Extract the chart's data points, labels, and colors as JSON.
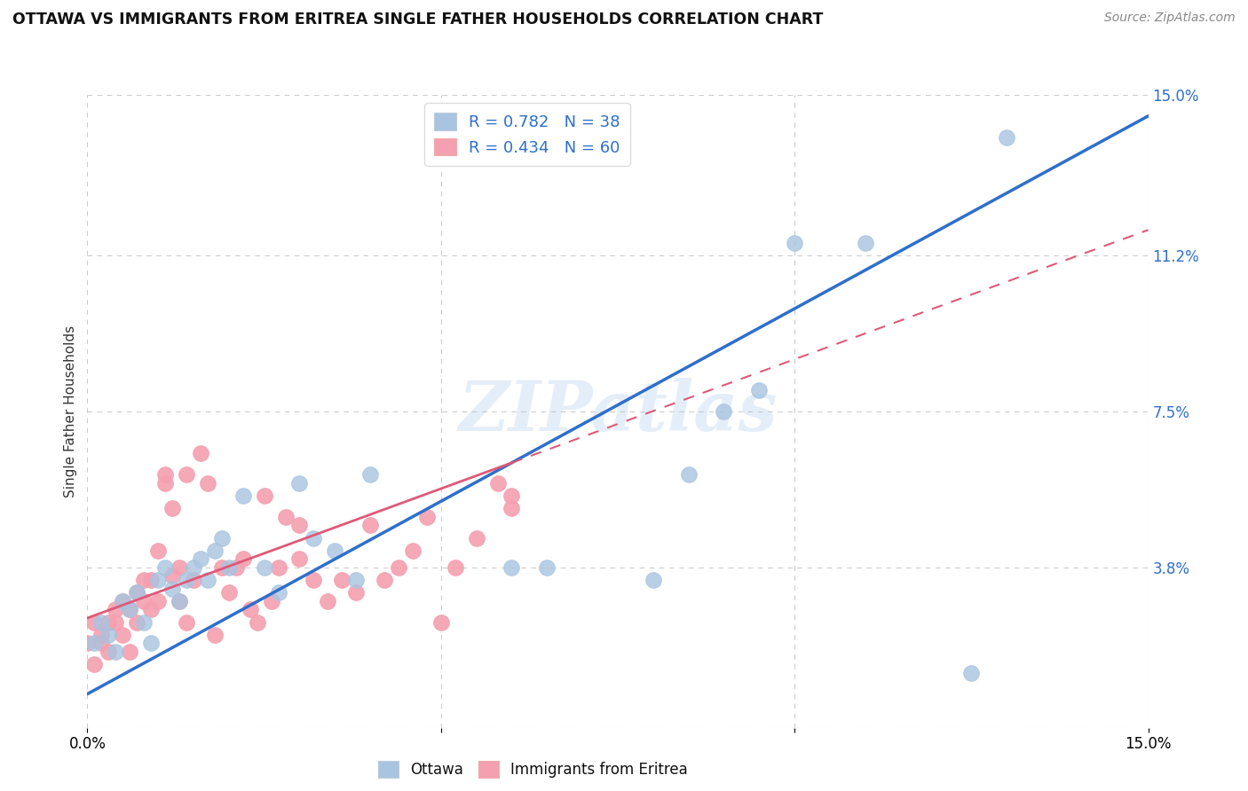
{
  "title": "OTTAWA VS IMMIGRANTS FROM ERITREA SINGLE FATHER HOUSEHOLDS CORRELATION CHART",
  "source": "Source: ZipAtlas.com",
  "ylabel": "Single Father Households",
  "ytick_values": [
    0.0,
    0.038,
    0.075,
    0.112,
    0.15
  ],
  "ytick_labels": [
    "",
    "3.8%",
    "7.5%",
    "11.2%",
    "15.0%"
  ],
  "xlim": [
    0.0,
    0.15
  ],
  "ylim": [
    0.0,
    0.15
  ],
  "legend_ottawa_R": "0.782",
  "legend_ottawa_N": "38",
  "legend_eritrea_R": "0.434",
  "legend_eritrea_N": "60",
  "ottawa_color": "#A8C4E0",
  "eritrea_color": "#F4A0B0",
  "ottawa_line_color": "#2E6FCC",
  "eritrea_line_color": "#E05878",
  "watermark": "ZIPatlas",
  "ottawa_line_x0": 0.0,
  "ottawa_line_y0": 0.008,
  "ottawa_line_x1": 0.15,
  "ottawa_line_y1": 0.145,
  "eritrea_line_x0": 0.0,
  "eritrea_line_y0": 0.026,
  "eritrea_line_x1": 0.15,
  "eritrea_line_y1": 0.118,
  "eritrea_line_solid_xmax": 0.06,
  "ottawa_scatter_x": [
    0.001,
    0.002,
    0.003,
    0.004,
    0.005,
    0.006,
    0.007,
    0.008,
    0.009,
    0.01,
    0.011,
    0.012,
    0.013,
    0.014,
    0.015,
    0.016,
    0.017,
    0.018,
    0.019,
    0.02,
    0.022,
    0.025,
    0.027,
    0.03,
    0.032,
    0.035,
    0.038,
    0.04,
    0.06,
    0.065,
    0.08,
    0.085,
    0.09,
    0.095,
    0.1,
    0.11,
    0.125,
    0.13
  ],
  "ottawa_scatter_y": [
    0.02,
    0.025,
    0.022,
    0.018,
    0.03,
    0.028,
    0.032,
    0.025,
    0.02,
    0.035,
    0.038,
    0.033,
    0.03,
    0.035,
    0.038,
    0.04,
    0.035,
    0.042,
    0.045,
    0.038,
    0.055,
    0.038,
    0.032,
    0.058,
    0.045,
    0.042,
    0.035,
    0.06,
    0.038,
    0.038,
    0.035,
    0.06,
    0.075,
    0.08,
    0.115,
    0.115,
    0.013,
    0.14
  ],
  "eritrea_scatter_x": [
    0.0,
    0.001,
    0.001,
    0.002,
    0.002,
    0.003,
    0.003,
    0.004,
    0.004,
    0.005,
    0.005,
    0.006,
    0.006,
    0.007,
    0.007,
    0.008,
    0.008,
    0.009,
    0.009,
    0.01,
    0.01,
    0.011,
    0.011,
    0.012,
    0.012,
    0.013,
    0.013,
    0.014,
    0.014,
    0.015,
    0.016,
    0.017,
    0.018,
    0.019,
    0.02,
    0.021,
    0.022,
    0.023,
    0.024,
    0.025,
    0.026,
    0.027,
    0.028,
    0.03,
    0.03,
    0.032,
    0.034,
    0.036,
    0.038,
    0.04,
    0.042,
    0.044,
    0.046,
    0.048,
    0.05,
    0.052,
    0.055,
    0.058,
    0.06,
    0.06
  ],
  "eritrea_scatter_y": [
    0.02,
    0.025,
    0.015,
    0.02,
    0.022,
    0.025,
    0.018,
    0.028,
    0.025,
    0.03,
    0.022,
    0.028,
    0.018,
    0.032,
    0.025,
    0.035,
    0.03,
    0.028,
    0.035,
    0.042,
    0.03,
    0.06,
    0.058,
    0.052,
    0.036,
    0.038,
    0.03,
    0.025,
    0.06,
    0.035,
    0.065,
    0.058,
    0.022,
    0.038,
    0.032,
    0.038,
    0.04,
    0.028,
    0.025,
    0.055,
    0.03,
    0.038,
    0.05,
    0.04,
    0.048,
    0.035,
    0.03,
    0.035,
    0.032,
    0.048,
    0.035,
    0.038,
    0.042,
    0.05,
    0.025,
    0.038,
    0.045,
    0.058,
    0.052,
    0.055
  ]
}
